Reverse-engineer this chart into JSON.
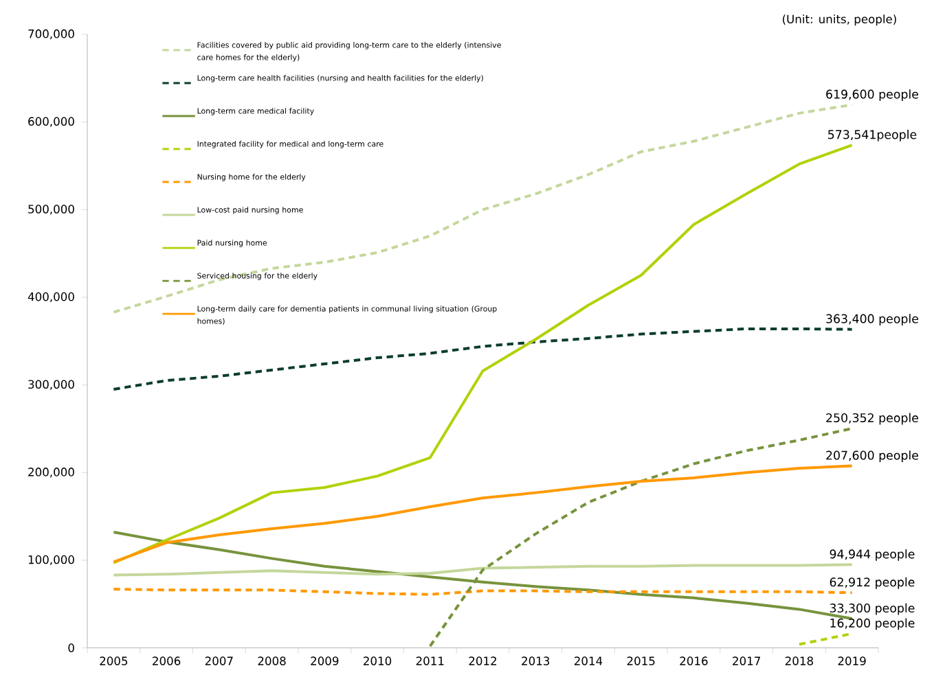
{
  "chart_data": {
    "type": "line",
    "annotations": [
      "(Unit: units, people)"
    ],
    "categories": [
      "2005",
      "2006",
      "2007",
      "2008",
      "2009",
      "2010",
      "2011",
      "2012",
      "2013",
      "2014",
      "2015",
      "2016",
      "2017",
      "2018",
      "2019"
    ],
    "ylim": [
      0,
      700000
    ],
    "yticks": [
      0,
      {
        "value": 100000,
        "label": "100,000"
      },
      {
        "value": 200000,
        "label": "200,000"
      },
      {
        "value": 300000,
        "label": "300,000"
      },
      {
        "value": 400000,
        "label": "400,000"
      },
      {
        "value": 500000,
        "label": "500,000"
      },
      {
        "value": 600000,
        "label": "600,000"
      },
      {
        "value": 700000,
        "label": "700,000"
      }
    ],
    "grid": false,
    "legend": "top left",
    "marker": "none",
    "series": [
      {
        "name": "Facilities covered by public aid providing long-term care to the elderly (intensive care homes for the elderly)",
        "color": "#c4d79b",
        "line_style": "dashed",
        "values": [
          383000,
          401000,
          420000,
          433000,
          440000,
          451000,
          470000,
          500000,
          518000,
          540000,
          566000,
          578000,
          594000,
          610000,
          619600
        ],
        "value_labels": [
          null,
          null,
          null,
          null,
          null,
          null,
          null,
          null,
          null,
          null,
          null,
          null,
          null,
          null,
          "619,600 people"
        ]
      },
      {
        "name": "Long-term care health facilities (nursing and health facilities for the elderly)",
        "color": "#0b3d2b",
        "line_style": "dashed",
        "values": [
          295000,
          305000,
          310000,
          317000,
          324000,
          331000,
          336000,
          344000,
          349000,
          353000,
          358000,
          361000,
          364000,
          364000,
          363400
        ],
        "value_labels": [
          null,
          null,
          null,
          null,
          null,
          null,
          null,
          null,
          null,
          null,
          null,
          null,
          null,
          null,
          "363,400 people"
        ]
      },
      {
        "name": "Long-term care medical facility",
        "color": "#77933c",
        "line_style": "solid",
        "values": [
          132000,
          121000,
          112000,
          102000,
          93000,
          87000,
          81000,
          75000,
          70000,
          66000,
          61000,
          57000,
          51000,
          44000,
          33300
        ],
        "value_labels": [
          null,
          null,
          null,
          null,
          null,
          null,
          null,
          null,
          null,
          null,
          null,
          null,
          null,
          null,
          "33,300 people"
        ]
      },
      {
        "name": "Integrated facility for medical and long-term care",
        "color": "#b3d10a",
        "line_style": "dashed",
        "values": [
          null,
          null,
          null,
          null,
          null,
          null,
          null,
          null,
          null,
          null,
          null,
          null,
          null,
          4000,
          16200
        ],
        "value_labels": [
          null,
          null,
          null,
          null,
          null,
          null,
          null,
          null,
          null,
          null,
          null,
          null,
          null,
          null,
          "16,200 people"
        ]
      },
      {
        "name": "Nursing home for the elderly",
        "color": "#ff9900",
        "line_style": "dashed",
        "values": [
          67000,
          66000,
          66000,
          66000,
          64000,
          62000,
          61000,
          65000,
          65000,
          64000,
          64000,
          64000,
          64000,
          64000,
          62912
        ],
        "value_labels": [
          null,
          null,
          null,
          null,
          null,
          null,
          null,
          null,
          null,
          null,
          null,
          null,
          null,
          null,
          "62,912 people"
        ]
      },
      {
        "name": "Low-cost paid nursing home",
        "color": "#c4d79b",
        "line_style": "solid",
        "values": [
          83000,
          84000,
          86000,
          88000,
          86000,
          84000,
          85000,
          91000,
          92000,
          93000,
          93000,
          94000,
          94000,
          94000,
          94944
        ],
        "value_labels": [
          null,
          null,
          null,
          null,
          null,
          null,
          null,
          null,
          null,
          null,
          null,
          null,
          null,
          null,
          "94,944 people"
        ]
      },
      {
        "name": "Paid nursing home",
        "color": "#b3d10a",
        "line_style": "solid",
        "values": [
          97000,
          123000,
          148000,
          177000,
          183000,
          196000,
          217000,
          316000,
          352000,
          391000,
          425000,
          483000,
          518000,
          552000,
          573541
        ],
        "value_labels": [
          null,
          null,
          null,
          null,
          null,
          null,
          null,
          null,
          null,
          null,
          null,
          null,
          null,
          null,
          "573,541people"
        ]
      },
      {
        "name": "Serviced housing for the elderly",
        "color": "#77933c",
        "line_style": "dashed",
        "values": [
          null,
          null,
          null,
          null,
          null,
          null,
          2000,
          89000,
          130000,
          166000,
          190000,
          210000,
          225000,
          237000,
          250352
        ],
        "value_labels": [
          null,
          null,
          null,
          null,
          null,
          null,
          null,
          null,
          null,
          null,
          null,
          null,
          null,
          null,
          "250,352 people"
        ]
      },
      {
        "name": "Long-term daily care for dementia patients in communal living situation (Group homes)",
        "color": "#ff9900",
        "line_style": "solid",
        "values": [
          98000,
          120000,
          129000,
          136000,
          142000,
          150000,
          161000,
          171000,
          177000,
          184000,
          190000,
          194000,
          200000,
          205000,
          207600
        ],
        "value_labels": [
          null,
          null,
          null,
          null,
          null,
          null,
          null,
          null,
          null,
          null,
          null,
          null,
          null,
          null,
          "207,600 people"
        ]
      }
    ]
  }
}
